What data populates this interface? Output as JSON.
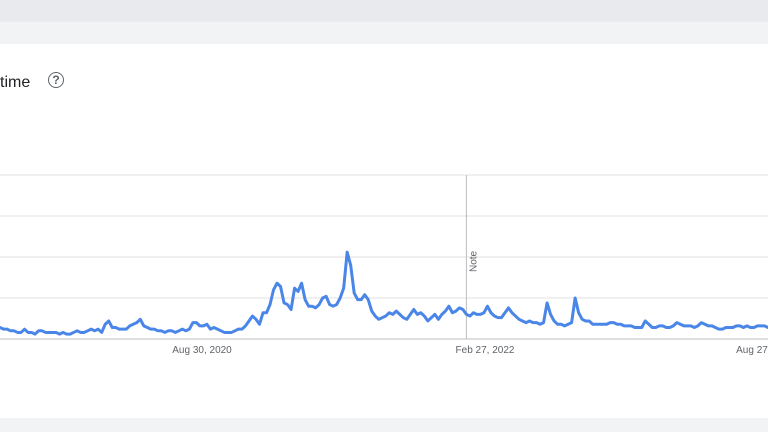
{
  "card": {
    "title": "time",
    "help_glyph": "?"
  },
  "icons": {
    "help": "help-icon"
  },
  "colors": {
    "line": "#4a86e8",
    "grid": "#e0e0e0",
    "background": "#f1f3f4"
  },
  "chart_data": {
    "type": "line",
    "title": "",
    "xlabel": "",
    "ylabel": "",
    "ylim": [
      0,
      100
    ],
    "grid": true,
    "x_tick_labels": [
      "Aug 30, 2020",
      "Feb 27, 2022",
      "Aug 27"
    ],
    "annotation": {
      "text": "Note",
      "at_index": 133
    },
    "series": [
      {
        "values": [
          7,
          6,
          6,
          5,
          5,
          4,
          4,
          6,
          4,
          4,
          3,
          5,
          5,
          4,
          4,
          4,
          4,
          3,
          4,
          3,
          3,
          4,
          5,
          4,
          4,
          5,
          6,
          5,
          6,
          4,
          9,
          11,
          7,
          7,
          6,
          6,
          6,
          8,
          9,
          10,
          12,
          8,
          7,
          6,
          6,
          5,
          5,
          4,
          5,
          5,
          4,
          5,
          6,
          5,
          6,
          10,
          10,
          8,
          8,
          9,
          6,
          7,
          6,
          5,
          4,
          4,
          4,
          5,
          6,
          6,
          8,
          11,
          14,
          12,
          9,
          16,
          16,
          21,
          30,
          34,
          32,
          22,
          21,
          18,
          31,
          29,
          34,
          24,
          20,
          20,
          19,
          21,
          25,
          26,
          21,
          20,
          21,
          25,
          31,
          53,
          45,
          28,
          24,
          24,
          27,
          24,
          17,
          14,
          12,
          13,
          14,
          16,
          15,
          17,
          15,
          13,
          12,
          15,
          18,
          15,
          16,
          14,
          11,
          13,
          15,
          12,
          15,
          17,
          20,
          16,
          17,
          19,
          18,
          15,
          14,
          16,
          15,
          15,
          16,
          20,
          16,
          14,
          13,
          13,
          16,
          19,
          16,
          14,
          12,
          11,
          10,
          11,
          10,
          10,
          9,
          10,
          22,
          15,
          11,
          9,
          9,
          8,
          9,
          10,
          25,
          16,
          12,
          11,
          11,
          9,
          9,
          9,
          9,
          9,
          10,
          10,
          9,
          9,
          8,
          8,
          8,
          7,
          7,
          7,
          11,
          9,
          7,
          7,
          8,
          8,
          7,
          7,
          8,
          10,
          9,
          8,
          8,
          8,
          7,
          8,
          10,
          9,
          8,
          8,
          7,
          6,
          6,
          7,
          7,
          7,
          8,
          8,
          7,
          8,
          7,
          7,
          8,
          8,
          8,
          7
        ]
      }
    ]
  }
}
